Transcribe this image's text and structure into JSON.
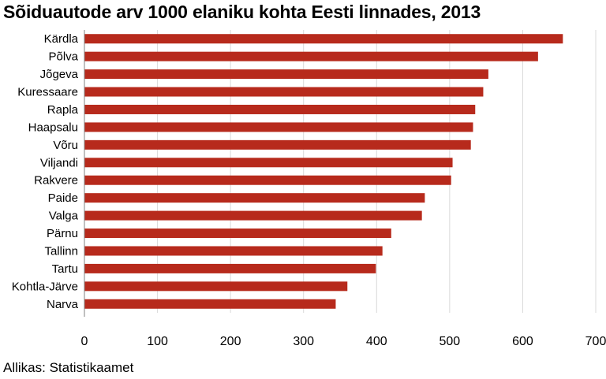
{
  "title": "Sõiduautode arv 1000 elaniku kohta Eesti linnades, 2013",
  "source": "Allikas: Statistikaamet",
  "colors": {
    "bar": "#b72a1c",
    "grid": "#d9d9d9",
    "axis": "#808080"
  },
  "chart_data": {
    "type": "bar",
    "orientation": "horizontal",
    "title": "Sõiduautode arv 1000 elaniku kohta Eesti linnades, 2013",
    "categories": [
      "Kärdla",
      "Põlva",
      "Jõgeva",
      "Kuressaare",
      "Rapla",
      "Haapsalu",
      "Võru",
      "Viljandi",
      "Rakvere",
      "Paide",
      "Valga",
      "Pärnu",
      "Tallinn",
      "Tartu",
      "Kohtla-Järve",
      "Narva"
    ],
    "values": [
      655,
      621,
      553,
      546,
      535,
      532,
      529,
      504,
      502,
      466,
      462,
      420,
      408,
      399,
      360,
      344
    ],
    "xlim": [
      0,
      700
    ],
    "xticks": [
      "0",
      "100",
      "200",
      "300",
      "400",
      "500",
      "600",
      "700"
    ],
    "grid": "vertical",
    "legend": "none"
  }
}
